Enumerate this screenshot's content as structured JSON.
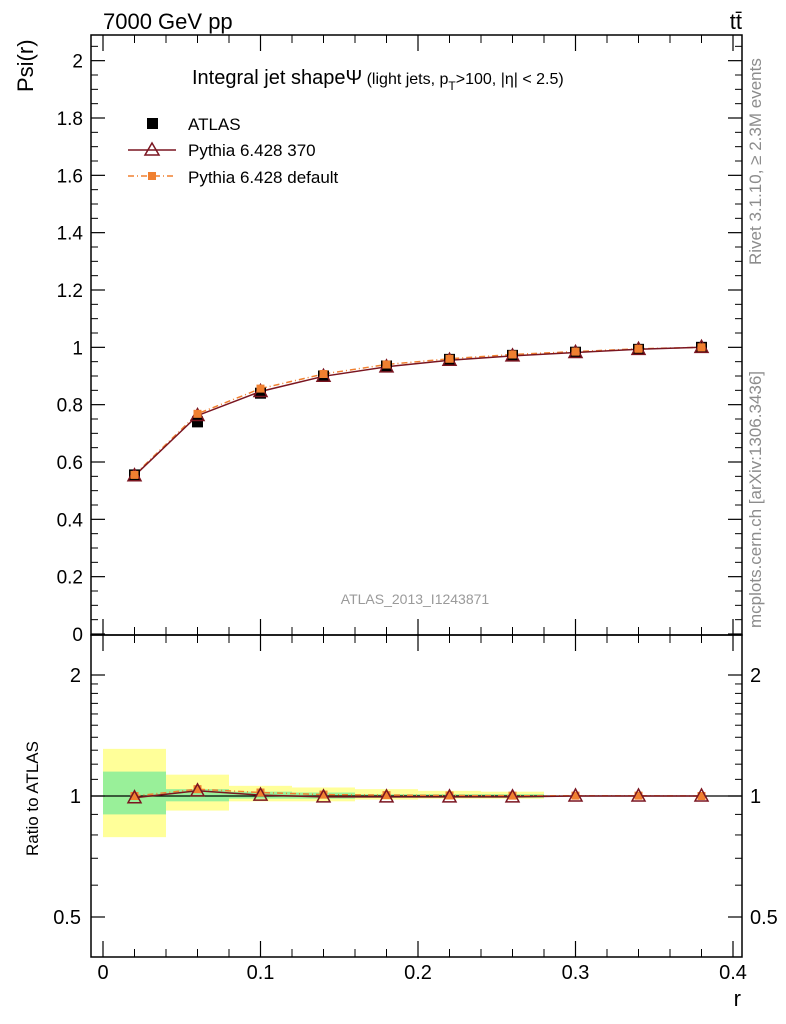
{
  "header": {
    "left": "7000 GeV pp",
    "right": "tt̄"
  },
  "side_labels": {
    "top": "Rivet 3.1.10, ≥ 2.3M events",
    "bottom": "mcplots.cern.ch [arXiv:1306.3436]"
  },
  "chart_data": [
    {
      "type": "line",
      "panel": "main",
      "title": "Integral jet shape",
      "title_symbol": "Ψ",
      "title_detail_a": " (light jets, p",
      "title_sub": "T",
      "title_detail_b": ">100, |η| < 2.5)",
      "ylabel": "Psi(r)",
      "xlabel": "r",
      "xlim": [
        0,
        0.4
      ],
      "ylim": [
        0,
        2.1
      ],
      "yticks": [
        0,
        0.2,
        0.4,
        0.6,
        0.8,
        1,
        1.2,
        1.4,
        1.6,
        1.8,
        2
      ],
      "ytick_labels": [
        "0",
        "0.2",
        "0.4",
        "0.6",
        "0.8",
        "1",
        "1.2",
        "1.4",
        "1.6",
        "1.8",
        "2"
      ],
      "watermark": "ATLAS_2013_I1243871",
      "legend_position": "top-left",
      "x": [
        0.02,
        0.06,
        0.1,
        0.14,
        0.18,
        0.22,
        0.26,
        0.3,
        0.34,
        0.38
      ],
      "series": [
        {
          "name": "ATLAS",
          "color": "#000000",
          "marker": "square",
          "values": [
            0.555,
            0.74,
            0.84,
            0.9,
            0.935,
            0.958,
            0.972,
            0.983,
            0.993,
            1.0
          ]
        },
        {
          "name": "Pythia 6.428 370",
          "color": "#7a1520",
          "marker": "triangle-open",
          "values": [
            0.552,
            0.762,
            0.846,
            0.899,
            0.932,
            0.955,
            0.97,
            0.982,
            0.993,
            1.0
          ]
        },
        {
          "name": "Pythia 6.428 default",
          "color": "#f08030",
          "marker": "square-small",
          "values": [
            0.555,
            0.768,
            0.856,
            0.907,
            0.94,
            0.96,
            0.975,
            0.985,
            0.995,
            1.0
          ]
        }
      ]
    },
    {
      "type": "line",
      "panel": "ratio",
      "ylabel": "Ratio to ATLAS",
      "xlabel": "r",
      "scale": "log",
      "xlim": [
        0,
        0.4
      ],
      "ylim": [
        0.4,
        2.4
      ],
      "xticks": [
        0,
        0.1,
        0.2,
        0.3,
        0.4
      ],
      "xtick_labels": [
        "0",
        "0.1",
        "0.2",
        "0.3",
        "0.4"
      ],
      "yticks": [
        0.5,
        1,
        2
      ],
      "ytick_labels": [
        "0.5",
        "1",
        "2"
      ],
      "bin_edges": [
        0,
        0.04,
        0.08,
        0.12,
        0.16,
        0.2,
        0.24,
        0.28,
        0.32,
        0.36,
        0.4
      ],
      "band_colors": {
        "stat": "#99f099",
        "total": "#ffff99"
      },
      "band_inner": [
        [
          0.9,
          1.15
        ],
        [
          0.97,
          1.04
        ],
        [
          0.985,
          1.025
        ],
        [
          0.985,
          1.02
        ],
        [
          0.99,
          1.01
        ],
        [
          0.99,
          1.01
        ],
        [
          0.99,
          1.01
        ],
        [
          1.0,
          1.0
        ],
        [
          1.0,
          1.0
        ],
        [
          1.0,
          1.0
        ]
      ],
      "band_outer": [
        [
          0.79,
          1.31
        ],
        [
          0.92,
          1.13
        ],
        [
          0.97,
          1.06
        ],
        [
          0.97,
          1.05
        ],
        [
          0.98,
          1.04
        ],
        [
          0.985,
          1.03
        ],
        [
          0.985,
          1.025
        ],
        [
          1.0,
          1.0
        ],
        [
          1.0,
          1.0
        ],
        [
          1.0,
          1.0
        ]
      ],
      "x": [
        0.02,
        0.06,
        0.1,
        0.14,
        0.18,
        0.22,
        0.26,
        0.3,
        0.34,
        0.38
      ],
      "series": [
        {
          "name": "Pythia 6.428 370",
          "color": "#7a1520",
          "marker": "triangle-open",
          "values": [
            0.99,
            1.03,
            1.005,
            0.995,
            0.995,
            0.995,
            0.995,
            1.0,
            1.0,
            1.0
          ]
        },
        {
          "name": "Pythia 6.428 default",
          "color": "#f08030",
          "marker": "square-small",
          "values": [
            1.0,
            1.04,
            1.02,
            1.008,
            1.005,
            1.003,
            1.002,
            1.002,
            1.002,
            1.0
          ]
        }
      ]
    }
  ]
}
